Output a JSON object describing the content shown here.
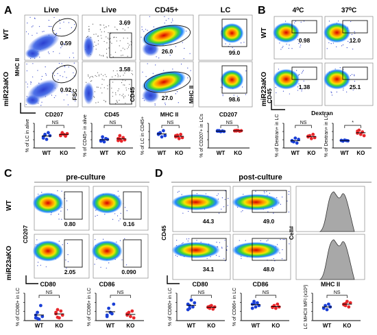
{
  "panelA": {
    "letter": "A",
    "col_titles": [
      "Live",
      "Live",
      "CD45+",
      "LC"
    ],
    "row_labels": [
      "WT",
      "miR23aKO"
    ],
    "y_axes": [
      "MHC II",
      "FSC",
      "CD45",
      "MHC II"
    ],
    "x_axes": [
      "CD207",
      "CD45",
      "MHC II",
      "CD207"
    ],
    "gates_wt": [
      "0.59",
      "3.69",
      "26.0",
      "99.0"
    ],
    "gates_ko": [
      "0.92",
      "3.58",
      "27.0",
      "98.6"
    ],
    "scatter_ylabels": [
      "% of LC in alive",
      "% of CD45+ in alive",
      "% of LC in CD45+",
      "% of CD207+ in LCs"
    ],
    "sig": [
      "NS",
      "NS",
      "NS",
      "NS"
    ],
    "groups": [
      "WT",
      "KO"
    ]
  },
  "panelB": {
    "letter": "B",
    "col_titles": [
      "4⁰C",
      "37⁰C"
    ],
    "row_labels": [
      "WT",
      "miR23aKO"
    ],
    "y_axis": "CD45",
    "x_axis": "Dextran",
    "gates_wt": [
      "0.98",
      "12.0"
    ],
    "gates_ko": [
      "1.38",
      "25.1"
    ],
    "scatter_ylabels": [
      "% of Dextran+ in LC",
      "% of Dextran+ in LC"
    ],
    "sig": [
      "NS",
      "*"
    ],
    "groups": [
      "WT",
      "KO"
    ]
  },
  "panelC": {
    "letter": "C",
    "title": "pre-culture",
    "row_labels": [
      "WT",
      "miR23aKO"
    ],
    "y_axis": "CD207",
    "x_axes": [
      "CD80",
      "CD86"
    ],
    "gates_wt": [
      "0.80",
      "0.16"
    ],
    "gates_ko": [
      "2.05",
      "0.090"
    ],
    "scatter_ylabels": [
      "% of CD80+ in LC",
      "% of CD86+ in LC"
    ],
    "sig": [
      "NS",
      "NS"
    ],
    "groups": [
      "WT",
      "KO"
    ]
  },
  "panelD": {
    "letter": "D",
    "title": "post-culture",
    "y_axis": "CD45",
    "x_axes": [
      "CD80",
      "CD86",
      "MHC II"
    ],
    "hist_ylabel": "Cell#",
    "gates_wt": [
      "44.3",
      "49.0"
    ],
    "gates_ko": [
      "34.1",
      "48.0"
    ],
    "scatter_ylabels": [
      "% of CD80+ in LC",
      "% of CD86+ in LC",
      "LC MHCII MFI (x10³)"
    ],
    "sig": [
      "NS",
      "NS",
      "NS"
    ],
    "groups": [
      "WT",
      "KO"
    ]
  },
  "colors": {
    "wt": "#1a3fd6",
    "ko": "#e8262a",
    "hist": "#a8a8a8"
  }
}
